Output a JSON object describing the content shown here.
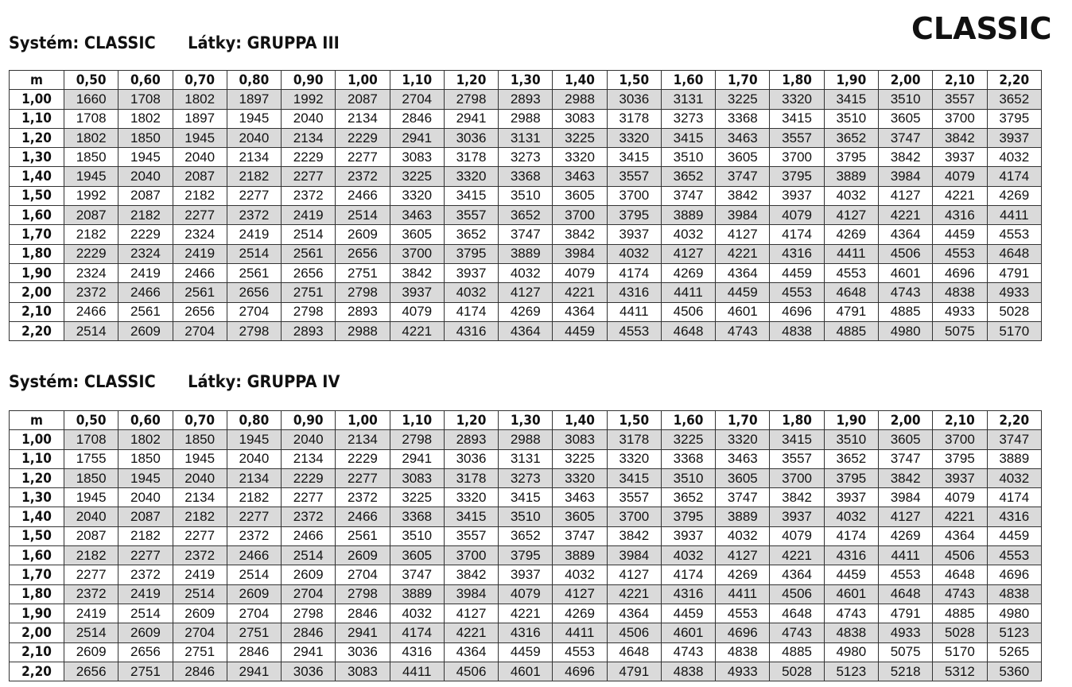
{
  "brand": "CLASSIC",
  "tables": [
    {
      "system_label": "Systém: CLASSIC",
      "fabric_label": "Látky: GRUPPA III",
      "corner": "m",
      "columns": [
        "0,50",
        "0,60",
        "0,70",
        "0,80",
        "0,90",
        "1,00",
        "1,10",
        "1,20",
        "1,30",
        "1,40",
        "1,50",
        "1,60",
        "1,70",
        "1,80",
        "1,90",
        "2,00",
        "2,10",
        "2,20"
      ],
      "rows": [
        {
          "h": "1,00",
          "v": [
            "1660",
            "1708",
            "1802",
            "1897",
            "1992",
            "2087",
            "2704",
            "2798",
            "2893",
            "2988",
            "3036",
            "3131",
            "3225",
            "3320",
            "3415",
            "3510",
            "3557",
            "3652"
          ]
        },
        {
          "h": "1,10",
          "v": [
            "1708",
            "1802",
            "1897",
            "1945",
            "2040",
            "2134",
            "2846",
            "2941",
            "2988",
            "3083",
            "3178",
            "3273",
            "3368",
            "3415",
            "3510",
            "3605",
            "3700",
            "3795"
          ]
        },
        {
          "h": "1,20",
          "v": [
            "1802",
            "1850",
            "1945",
            "2040",
            "2134",
            "2229",
            "2941",
            "3036",
            "3131",
            "3225",
            "3320",
            "3415",
            "3463",
            "3557",
            "3652",
            "3747",
            "3842",
            "3937"
          ]
        },
        {
          "h": "1,30",
          "v": [
            "1850",
            "1945",
            "2040",
            "2134",
            "2229",
            "2277",
            "3083",
            "3178",
            "3273",
            "3320",
            "3415",
            "3510",
            "3605",
            "3700",
            "3795",
            "3842",
            "3937",
            "4032"
          ]
        },
        {
          "h": "1,40",
          "v": [
            "1945",
            "2040",
            "2087",
            "2182",
            "2277",
            "2372",
            "3225",
            "3320",
            "3368",
            "3463",
            "3557",
            "3652",
            "3747",
            "3795",
            "3889",
            "3984",
            "4079",
            "4174"
          ]
        },
        {
          "h": "1,50",
          "v": [
            "1992",
            "2087",
            "2182",
            "2277",
            "2372",
            "2466",
            "3320",
            "3415",
            "3510",
            "3605",
            "3700",
            "3747",
            "3842",
            "3937",
            "4032",
            "4127",
            "4221",
            "4269"
          ]
        },
        {
          "h": "1,60",
          "v": [
            "2087",
            "2182",
            "2277",
            "2372",
            "2419",
            "2514",
            "3463",
            "3557",
            "3652",
            "3700",
            "3795",
            "3889",
            "3984",
            "4079",
            "4127",
            "4221",
            "4316",
            "4411"
          ]
        },
        {
          "h": "1,70",
          "v": [
            "2182",
            "2229",
            "2324",
            "2419",
            "2514",
            "2609",
            "3605",
            "3652",
            "3747",
            "3842",
            "3937",
            "4032",
            "4127",
            "4174",
            "4269",
            "4364",
            "4459",
            "4553"
          ]
        },
        {
          "h": "1,80",
          "v": [
            "2229",
            "2324",
            "2419",
            "2514",
            "2561",
            "2656",
            "3700",
            "3795",
            "3889",
            "3984",
            "4032",
            "4127",
            "4221",
            "4316",
            "4411",
            "4506",
            "4553",
            "4648"
          ]
        },
        {
          "h": "1,90",
          "v": [
            "2324",
            "2419",
            "2466",
            "2561",
            "2656",
            "2751",
            "3842",
            "3937",
            "4032",
            "4079",
            "4174",
            "4269",
            "4364",
            "4459",
            "4553",
            "4601",
            "4696",
            "4791"
          ]
        },
        {
          "h": "2,00",
          "v": [
            "2372",
            "2466",
            "2561",
            "2656",
            "2751",
            "2798",
            "3937",
            "4032",
            "4127",
            "4221",
            "4316",
            "4411",
            "4459",
            "4553",
            "4648",
            "4743",
            "4838",
            "4933"
          ]
        },
        {
          "h": "2,10",
          "v": [
            "2466",
            "2561",
            "2656",
            "2704",
            "2798",
            "2893",
            "4079",
            "4174",
            "4269",
            "4364",
            "4411",
            "4506",
            "4601",
            "4696",
            "4791",
            "4885",
            "4933",
            "5028"
          ]
        },
        {
          "h": "2,20",
          "v": [
            "2514",
            "2609",
            "2704",
            "2798",
            "2893",
            "2988",
            "4221",
            "4316",
            "4364",
            "4459",
            "4553",
            "4648",
            "4743",
            "4838",
            "4885",
            "4980",
            "5075",
            "5170"
          ]
        }
      ]
    },
    {
      "system_label": "Systém: CLASSIC",
      "fabric_label": "Látky: GRUPPA IV",
      "corner": "m",
      "columns": [
        "0,50",
        "0,60",
        "0,70",
        "0,80",
        "0,90",
        "1,00",
        "1,10",
        "1,20",
        "1,30",
        "1,40",
        "1,50",
        "1,60",
        "1,70",
        "1,80",
        "1,90",
        "2,00",
        "2,10",
        "2,20"
      ],
      "rows": [
        {
          "h": "1,00",
          "v": [
            "1708",
            "1802",
            "1850",
            "1945",
            "2040",
            "2134",
            "2798",
            "2893",
            "2988",
            "3083",
            "3178",
            "3225",
            "3320",
            "3415",
            "3510",
            "3605",
            "3700",
            "3747"
          ]
        },
        {
          "h": "1,10",
          "v": [
            "1755",
            "1850",
            "1945",
            "2040",
            "2134",
            "2229",
            "2941",
            "3036",
            "3131",
            "3225",
            "3320",
            "3368",
            "3463",
            "3557",
            "3652",
            "3747",
            "3795",
            "3889"
          ]
        },
        {
          "h": "1,20",
          "v": [
            "1850",
            "1945",
            "2040",
            "2134",
            "2229",
            "2277",
            "3083",
            "3178",
            "3273",
            "3320",
            "3415",
            "3510",
            "3605",
            "3700",
            "3795",
            "3842",
            "3937",
            "4032"
          ]
        },
        {
          "h": "1,30",
          "v": [
            "1945",
            "2040",
            "2134",
            "2182",
            "2277",
            "2372",
            "3225",
            "3320",
            "3415",
            "3463",
            "3557",
            "3652",
            "3747",
            "3842",
            "3937",
            "3984",
            "4079",
            "4174"
          ]
        },
        {
          "h": "1,40",
          "v": [
            "2040",
            "2087",
            "2182",
            "2277",
            "2372",
            "2466",
            "3368",
            "3415",
            "3510",
            "3605",
            "3700",
            "3795",
            "3889",
            "3937",
            "4032",
            "4127",
            "4221",
            "4316"
          ]
        },
        {
          "h": "1,50",
          "v": [
            "2087",
            "2182",
            "2277",
            "2372",
            "2466",
            "2561",
            "3510",
            "3557",
            "3652",
            "3747",
            "3842",
            "3937",
            "4032",
            "4079",
            "4174",
            "4269",
            "4364",
            "4459"
          ]
        },
        {
          "h": "1,60",
          "v": [
            "2182",
            "2277",
            "2372",
            "2466",
            "2514",
            "2609",
            "3605",
            "3700",
            "3795",
            "3889",
            "3984",
            "4032",
            "4127",
            "4221",
            "4316",
            "4411",
            "4506",
            "4553"
          ]
        },
        {
          "h": "1,70",
          "v": [
            "2277",
            "2372",
            "2419",
            "2514",
            "2609",
            "2704",
            "3747",
            "3842",
            "3937",
            "4032",
            "4127",
            "4174",
            "4269",
            "4364",
            "4459",
            "4553",
            "4648",
            "4696"
          ]
        },
        {
          "h": "1,80",
          "v": [
            "2372",
            "2419",
            "2514",
            "2609",
            "2704",
            "2798",
            "3889",
            "3984",
            "4079",
            "4127",
            "4221",
            "4316",
            "4411",
            "4506",
            "4601",
            "4648",
            "4743",
            "4838"
          ]
        },
        {
          "h": "1,90",
          "v": [
            "2419",
            "2514",
            "2609",
            "2704",
            "2798",
            "2846",
            "4032",
            "4127",
            "4221",
            "4269",
            "4364",
            "4459",
            "4553",
            "4648",
            "4743",
            "4791",
            "4885",
            "4980"
          ]
        },
        {
          "h": "2,00",
          "v": [
            "2514",
            "2609",
            "2704",
            "2751",
            "2846",
            "2941",
            "4174",
            "4221",
            "4316",
            "4411",
            "4506",
            "4601",
            "4696",
            "4743",
            "4838",
            "4933",
            "5028",
            "5123"
          ]
        },
        {
          "h": "2,10",
          "v": [
            "2609",
            "2656",
            "2751",
            "2846",
            "2941",
            "3036",
            "4316",
            "4364",
            "4459",
            "4553",
            "4648",
            "4743",
            "4838",
            "4885",
            "4980",
            "5075",
            "5170",
            "5265"
          ]
        },
        {
          "h": "2,20",
          "v": [
            "2656",
            "2751",
            "2846",
            "2941",
            "3036",
            "3083",
            "4411",
            "4506",
            "4601",
            "4696",
            "4791",
            "4838",
            "4933",
            "5028",
            "5123",
            "5218",
            "5312",
            "5360"
          ]
        }
      ]
    }
  ]
}
